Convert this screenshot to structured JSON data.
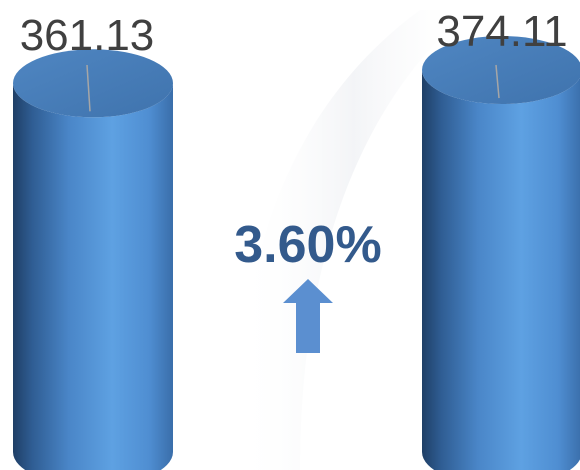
{
  "chart_data": {
    "type": "bar",
    "style": "cylinder",
    "categories": [
      "",
      ""
    ],
    "values": [
      361.13,
      374.11
    ],
    "value_labels": [
      "361.13",
      "374.11"
    ],
    "ylim": [
      0,
      400
    ],
    "grid": false,
    "legend": "none",
    "change": {
      "label": "3.60%",
      "direction": "up",
      "color": "#335a8c",
      "arrow_color": "#5b8fd0"
    },
    "bar_color": "#5b9bd5"
  }
}
